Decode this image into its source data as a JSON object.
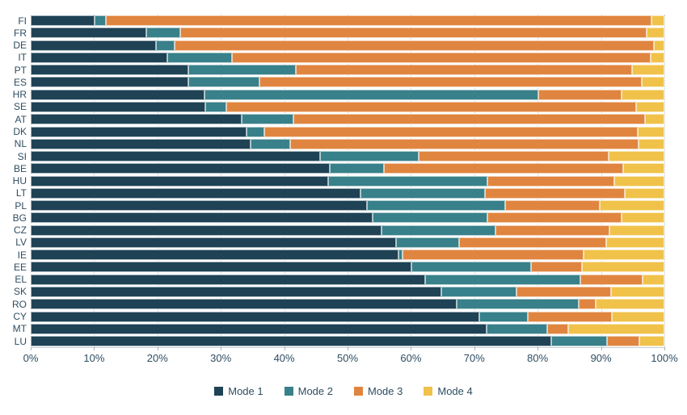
{
  "chart_data": {
    "type": "bar",
    "orientation": "horizontal",
    "stacked": true,
    "title": "",
    "xlabel": "",
    "ylabel": "",
    "xlim": [
      0,
      100
    ],
    "grid": "vertical-dotted",
    "legend_position": "bottom",
    "x_ticks": [
      "0%",
      "10%",
      "20%",
      "30%",
      "40%",
      "50%",
      "60%",
      "70%",
      "80%",
      "90%",
      "100%"
    ],
    "categories": [
      "FI",
      "FR",
      "DE",
      "IT",
      "PT",
      "ES",
      "HR",
      "SE",
      "AT",
      "DK",
      "NL",
      "SI",
      "BE",
      "HU",
      "LT",
      "PL",
      "BG",
      "CZ",
      "LV",
      "IE",
      "EE",
      "EL",
      "SK",
      "RO",
      "CY",
      "MT",
      "LU"
    ],
    "series": [
      {
        "name": "Mode 1",
        "color": "#1F4255",
        "values": [
          10.1,
          18.2,
          19.8,
          21.6,
          24.9,
          24.9,
          27.4,
          27.5,
          33.3,
          34.1,
          34.7,
          45.7,
          47.2,
          47.0,
          52.1,
          53.1,
          54.0,
          55.4,
          57.7,
          58.0,
          60.1,
          62.2,
          64.8,
          67.2,
          70.8,
          72.0,
          82.2
        ]
      },
      {
        "name": "Mode 2",
        "color": "#38808A",
        "values": [
          1.8,
          5.4,
          2.9,
          10.1,
          17.0,
          11.2,
          52.7,
          3.4,
          8.2,
          2.7,
          6.2,
          15.5,
          8.5,
          25.1,
          19.6,
          21.8,
          18.1,
          18.0,
          9.9,
          0.7,
          18.9,
          24.5,
          11.8,
          19.3,
          7.7,
          9.5,
          8.8
        ]
      },
      {
        "name": "Mode 3",
        "color": "#E0853F",
        "values": [
          86.0,
          73.6,
          75.6,
          66.1,
          53.0,
          60.3,
          13.1,
          64.6,
          55.4,
          59.0,
          55.0,
          30.0,
          37.8,
          20.0,
          22.0,
          14.9,
          21.2,
          17.9,
          23.2,
          28.5,
          8.0,
          9.9,
          15.0,
          2.7,
          13.2,
          3.3,
          5.0
        ]
      },
      {
        "name": "Mode 4",
        "color": "#F0C24A",
        "values": [
          2.1,
          2.8,
          1.7,
          2.2,
          5.1,
          3.6,
          6.8,
          4.5,
          3.1,
          4.2,
          4.1,
          8.8,
          6.5,
          7.9,
          6.3,
          10.2,
          6.7,
          8.7,
          9.2,
          12.8,
          13.0,
          3.4,
          8.4,
          10.8,
          8.3,
          15.2,
          4.0
        ]
      }
    ],
    "colors": {
      "axis_text": "#2e4d61",
      "gridline": "#c9d1d7",
      "axis_line": "#c6cdd3"
    }
  }
}
